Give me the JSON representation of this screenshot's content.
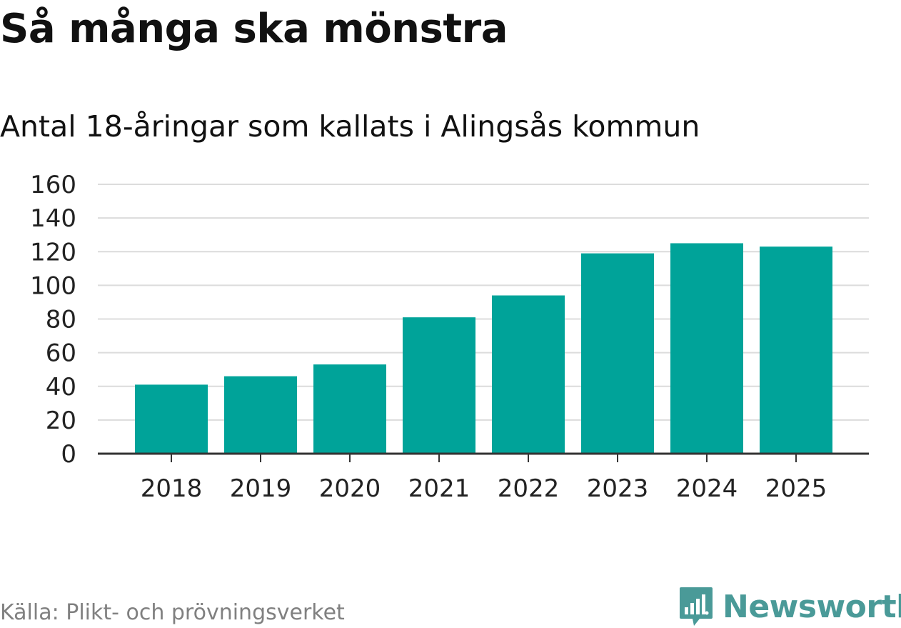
{
  "title": "Så många ska mönstra",
  "subtitle": "Antal 18-åringar som kallats i Alingsås kommun",
  "source": "Källa: Plikt- och prövningsverket",
  "brand": "Newsworthy",
  "colors": {
    "bar": "#00a399",
    "grid": "#dcdcdc",
    "axis": "#333333",
    "brand": "#4a9a98",
    "source_text": "#808080"
  },
  "chart_data": {
    "type": "bar",
    "title": "Så många ska mönstra",
    "subtitle": "Antal 18-åringar som kallats i Alingsås kommun",
    "xlabel": "",
    "ylabel": "",
    "categories": [
      "2018",
      "2019",
      "2020",
      "2021",
      "2022",
      "2023",
      "2024",
      "2025"
    ],
    "values": [
      41,
      46,
      53,
      81,
      94,
      119,
      125,
      123
    ],
    "ylim": [
      0,
      160
    ],
    "yticks": [
      0,
      20,
      40,
      60,
      80,
      100,
      120,
      140,
      160
    ],
    "grid": true,
    "legend": "none"
  }
}
